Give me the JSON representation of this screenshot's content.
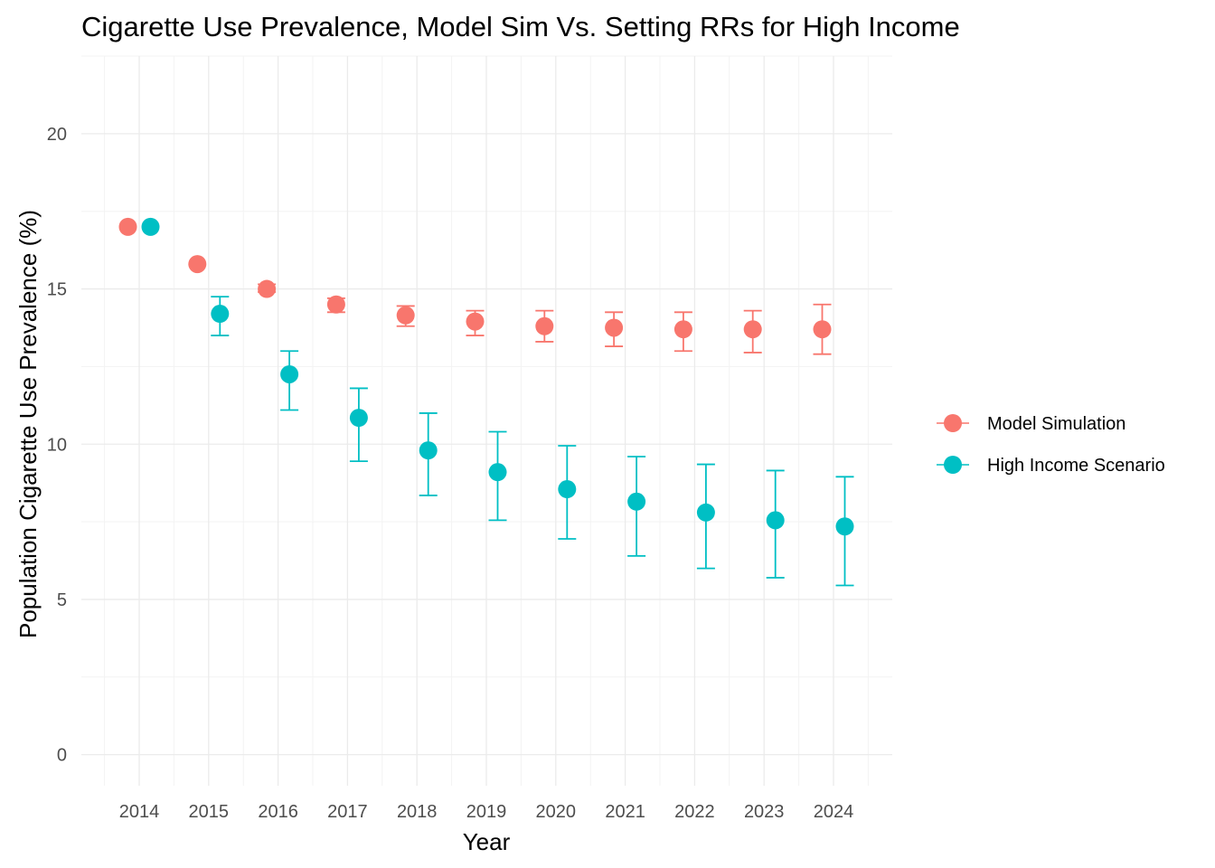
{
  "chart_data": {
    "type": "scatter",
    "title": "Cigarette Use Prevalence, Model Sim Vs. Setting RRs for High Income",
    "xlabel": "Year",
    "ylabel": "Population Cigarette Use Prevalence (%)",
    "x": [
      "2014",
      "2015",
      "2016",
      "2017",
      "2018",
      "2019",
      "2020",
      "2021",
      "2022",
      "2023",
      "2024"
    ],
    "ylim": [
      -1,
      22.5
    ],
    "yticks": [
      0,
      5,
      10,
      15,
      20
    ],
    "grid": true,
    "legend_position": "right",
    "series": [
      {
        "name": "Model Simulation",
        "color": "#F8766D",
        "values": [
          17.0,
          15.8,
          15.0,
          14.5,
          14.15,
          13.95,
          13.8,
          13.75,
          13.7,
          13.7,
          13.7
        ],
        "lower": [
          17.0,
          15.8,
          14.9,
          14.25,
          13.8,
          13.5,
          13.3,
          13.15,
          13.0,
          12.95,
          12.9
        ],
        "upper": [
          17.0,
          15.8,
          15.15,
          14.7,
          14.45,
          14.3,
          14.3,
          14.25,
          14.25,
          14.3,
          14.5
        ]
      },
      {
        "name": "High Income Scenario",
        "color": "#00BFC4",
        "values": [
          17.0,
          14.2,
          12.25,
          10.85,
          9.8,
          9.1,
          8.55,
          8.15,
          7.8,
          7.55,
          7.35
        ],
        "lower": [
          17.0,
          13.5,
          11.1,
          9.45,
          8.35,
          7.55,
          6.95,
          6.4,
          6.0,
          5.7,
          5.45
        ],
        "upper": [
          17.0,
          14.75,
          13.0,
          11.8,
          11.0,
          10.4,
          9.95,
          9.6,
          9.35,
          9.15,
          8.95
        ]
      }
    ]
  }
}
